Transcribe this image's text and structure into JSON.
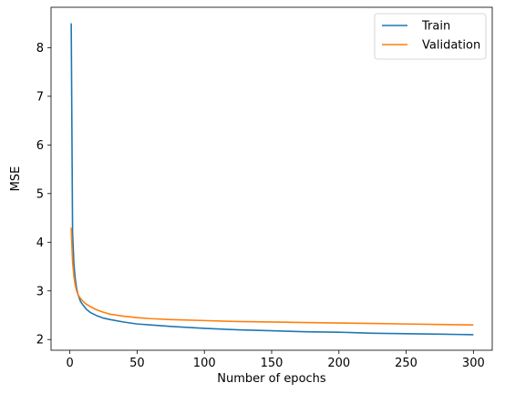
{
  "chart_data": {
    "type": "line",
    "title": "",
    "xlabel": "Number of epochs",
    "ylabel": "MSE",
    "xlim": [
      -14,
      314
    ],
    "ylim": [
      1.78,
      8.83
    ],
    "xticks": [
      0,
      50,
      100,
      150,
      200,
      250,
      300
    ],
    "yticks": [
      2,
      3,
      4,
      5,
      6,
      7,
      8
    ],
    "grid": false,
    "legend_position": "top-right",
    "x": [
      1,
      2,
      3,
      4,
      5,
      6,
      7,
      8,
      10,
      12,
      15,
      20,
      25,
      30,
      40,
      50,
      60,
      75,
      100,
      125,
      150,
      175,
      200,
      225,
      250,
      275,
      300
    ],
    "series": [
      {
        "name": "Train",
        "color": "#1f77b4",
        "values": [
          8.5,
          4.2,
          3.55,
          3.25,
          3.05,
          2.93,
          2.85,
          2.78,
          2.7,
          2.63,
          2.56,
          2.49,
          2.44,
          2.41,
          2.36,
          2.32,
          2.3,
          2.27,
          2.23,
          2.2,
          2.18,
          2.16,
          2.15,
          2.13,
          2.12,
          2.11,
          2.1
        ]
      },
      {
        "name": "Validation",
        "color": "#ff7f0e",
        "values": [
          4.3,
          3.6,
          3.3,
          3.12,
          3.0,
          2.93,
          2.88,
          2.84,
          2.78,
          2.73,
          2.68,
          2.61,
          2.56,
          2.52,
          2.48,
          2.45,
          2.43,
          2.41,
          2.39,
          2.37,
          2.36,
          2.35,
          2.34,
          2.33,
          2.32,
          2.31,
          2.3
        ]
      }
    ]
  }
}
